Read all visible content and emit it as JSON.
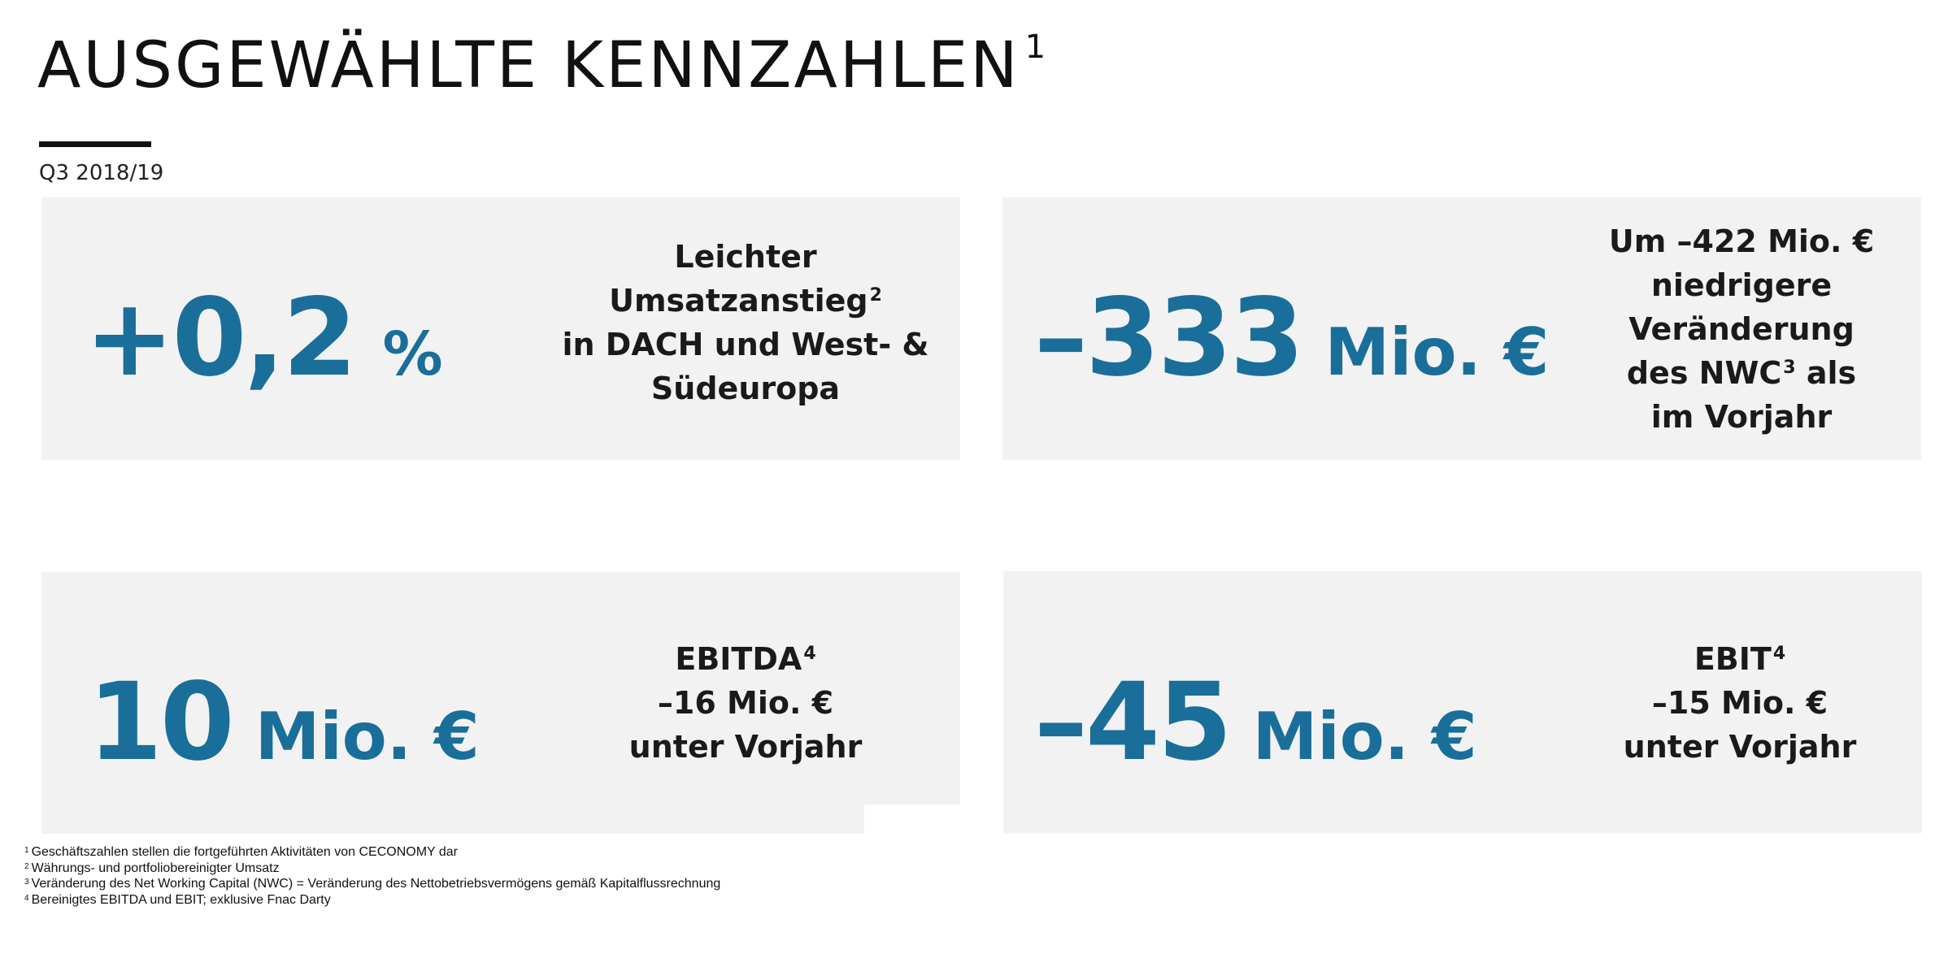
{
  "header": {
    "title": "AUSGEWÄHLTE KENNZAHLEN",
    "title_footnote": "1",
    "subtitle": "Q3 2018/19"
  },
  "colors": {
    "accent": "#1a6e9a",
    "card_bg": "#f2f2f2"
  },
  "kpis": [
    {
      "value": "+0,2",
      "unit": "%",
      "description": [
        {
          "text": "Leichter"
        },
        {
          "text": "Umsatzanstieg",
          "footnote": "2"
        },
        {
          "text": "in DACH und West- &"
        },
        {
          "text": "Südeuropa"
        }
      ]
    },
    {
      "value": "–333",
      "unit": "Mio. €",
      "description": [
        {
          "text": "Um –422 Mio. €"
        },
        {
          "text": "niedrigere"
        },
        {
          "text": "Veränderung"
        },
        {
          "text": "des NWC",
          "footnote": "3",
          "tail": " als"
        },
        {
          "text": "im Vorjahr"
        }
      ]
    },
    {
      "value": "10",
      "unit": "Mio. €",
      "description": [
        {
          "text": "EBITDA",
          "footnote": "4"
        },
        {
          "text": "–16 Mio. €"
        },
        {
          "text": "unter Vorjahr"
        }
      ]
    },
    {
      "value": "–45",
      "unit": "Mio. €",
      "description": [
        {
          "text": "EBIT",
          "footnote": "4"
        },
        {
          "text": "–15 Mio. €"
        },
        {
          "text": "unter Vorjahr"
        }
      ]
    }
  ],
  "footnotes": [
    {
      "marker": "1",
      "text": "Geschäftszahlen stellen die fortgeführten Aktivitäten von CECONOMY dar"
    },
    {
      "marker": "2",
      "text": "Währungs- und portfoliobereinigter Umsatz"
    },
    {
      "marker": "3",
      "text": "Veränderung des Net Working Capital (NWC) = Veränderung des Nettobetriebsvermögens gemäß Kapitalflussrechnung"
    },
    {
      "marker": "4",
      "text": "Bereinigtes EBITDA und EBIT; exklusive Fnac Darty"
    }
  ]
}
